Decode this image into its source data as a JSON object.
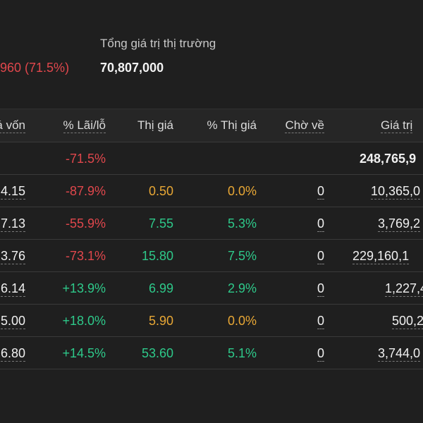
{
  "summary": {
    "profit_loss_partial": "960 (71.5%)",
    "market_value_label": "Tổng giá trị thị trường",
    "market_value": "70,807,000"
  },
  "colors": {
    "negative": "#e0474c",
    "positive": "#2ec98a",
    "neutral": "#e8a735"
  },
  "table": {
    "headers": {
      "cost": "á vốn",
      "pl_pct": "% Lãi/lỗ",
      "price": "Thị giá",
      "price_pct": "% Thị giá",
      "pending": "Chờ về",
      "value": "Giá trị"
    },
    "total_row": {
      "pl_pct": "-71.5%",
      "value": "248,765,9"
    },
    "rows": [
      {
        "cost": "4.15",
        "pl_pct": "-87.9%",
        "price": "0.50",
        "price_pct": "0.0%",
        "pending": "0",
        "value": "10,365,0"
      },
      {
        "cost": "7.13",
        "pl_pct": "-55.9%",
        "price": "7.55",
        "price_pct": "5.3%",
        "pending": "0",
        "value": "3,769,2"
      },
      {
        "cost": "3.76",
        "pl_pct": "-73.1%",
        "price": "15.80",
        "price_pct": "7.5%",
        "pending": "0",
        "value": "229,160,1"
      },
      {
        "cost": "6.14",
        "pl_pct": "+13.9%",
        "price": "6.99",
        "price_pct": "2.9%",
        "pending": "0",
        "value": "1,227,4"
      },
      {
        "cost": "5.00",
        "pl_pct": "+18.0%",
        "price": "5.90",
        "price_pct": "0.0%",
        "pending": "0",
        "value": "500,2"
      },
      {
        "cost": "6.80",
        "pl_pct": "+14.5%",
        "price": "53.60",
        "price_pct": "5.1%",
        "pending": "0",
        "value": "3,744,0"
      }
    ]
  }
}
